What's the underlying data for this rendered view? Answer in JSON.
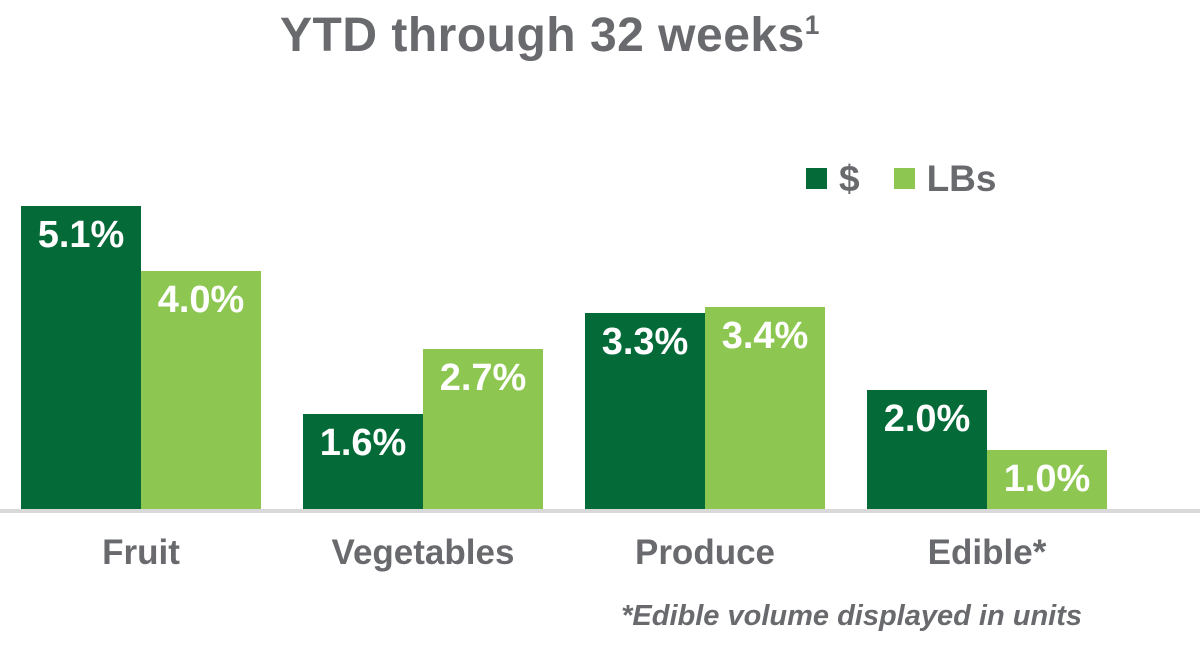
{
  "title": {
    "text": "YTD through 32 weeks",
    "superscript": "1"
  },
  "legend": {
    "items": [
      {
        "label": "$",
        "swatch_color": "#046a38"
      },
      {
        "label": "LBs",
        "swatch_color": "#8dc751"
      }
    ]
  },
  "footnote": "*Edible volume displayed in units",
  "chart_data": {
    "type": "bar",
    "title": "YTD through 32 weeks¹",
    "categories": [
      "Fruit",
      "Vegetables",
      "Produce",
      "Edible*"
    ],
    "series": [
      {
        "name": "$",
        "color": "#046a38",
        "values": [
          5.1,
          1.6,
          3.3,
          2.0
        ],
        "labels": [
          "5.1%",
          "1.6%",
          "3.3%",
          "2.0%"
        ]
      },
      {
        "name": "LBs",
        "color": "#8dc751",
        "values": [
          4.0,
          2.7,
          3.4,
          1.0
        ],
        "labels": [
          "4.0%",
          "2.7%",
          "3.4%",
          "1.0%"
        ]
      }
    ],
    "unit": "%",
    "ylim": [
      0,
      5.5
    ],
    "grid": false,
    "axis_line_color": "#d9d9d9",
    "value_label_color": "#ffffff",
    "legend_position": "top-right",
    "footnote": "*Edible volume displayed in units"
  },
  "colors": {
    "dollars_green": "#046a38",
    "lbs_green": "#8dc751",
    "text_gray": "#696a6e",
    "baseline_gray": "#d9d9d9",
    "background": "#ffffff"
  }
}
